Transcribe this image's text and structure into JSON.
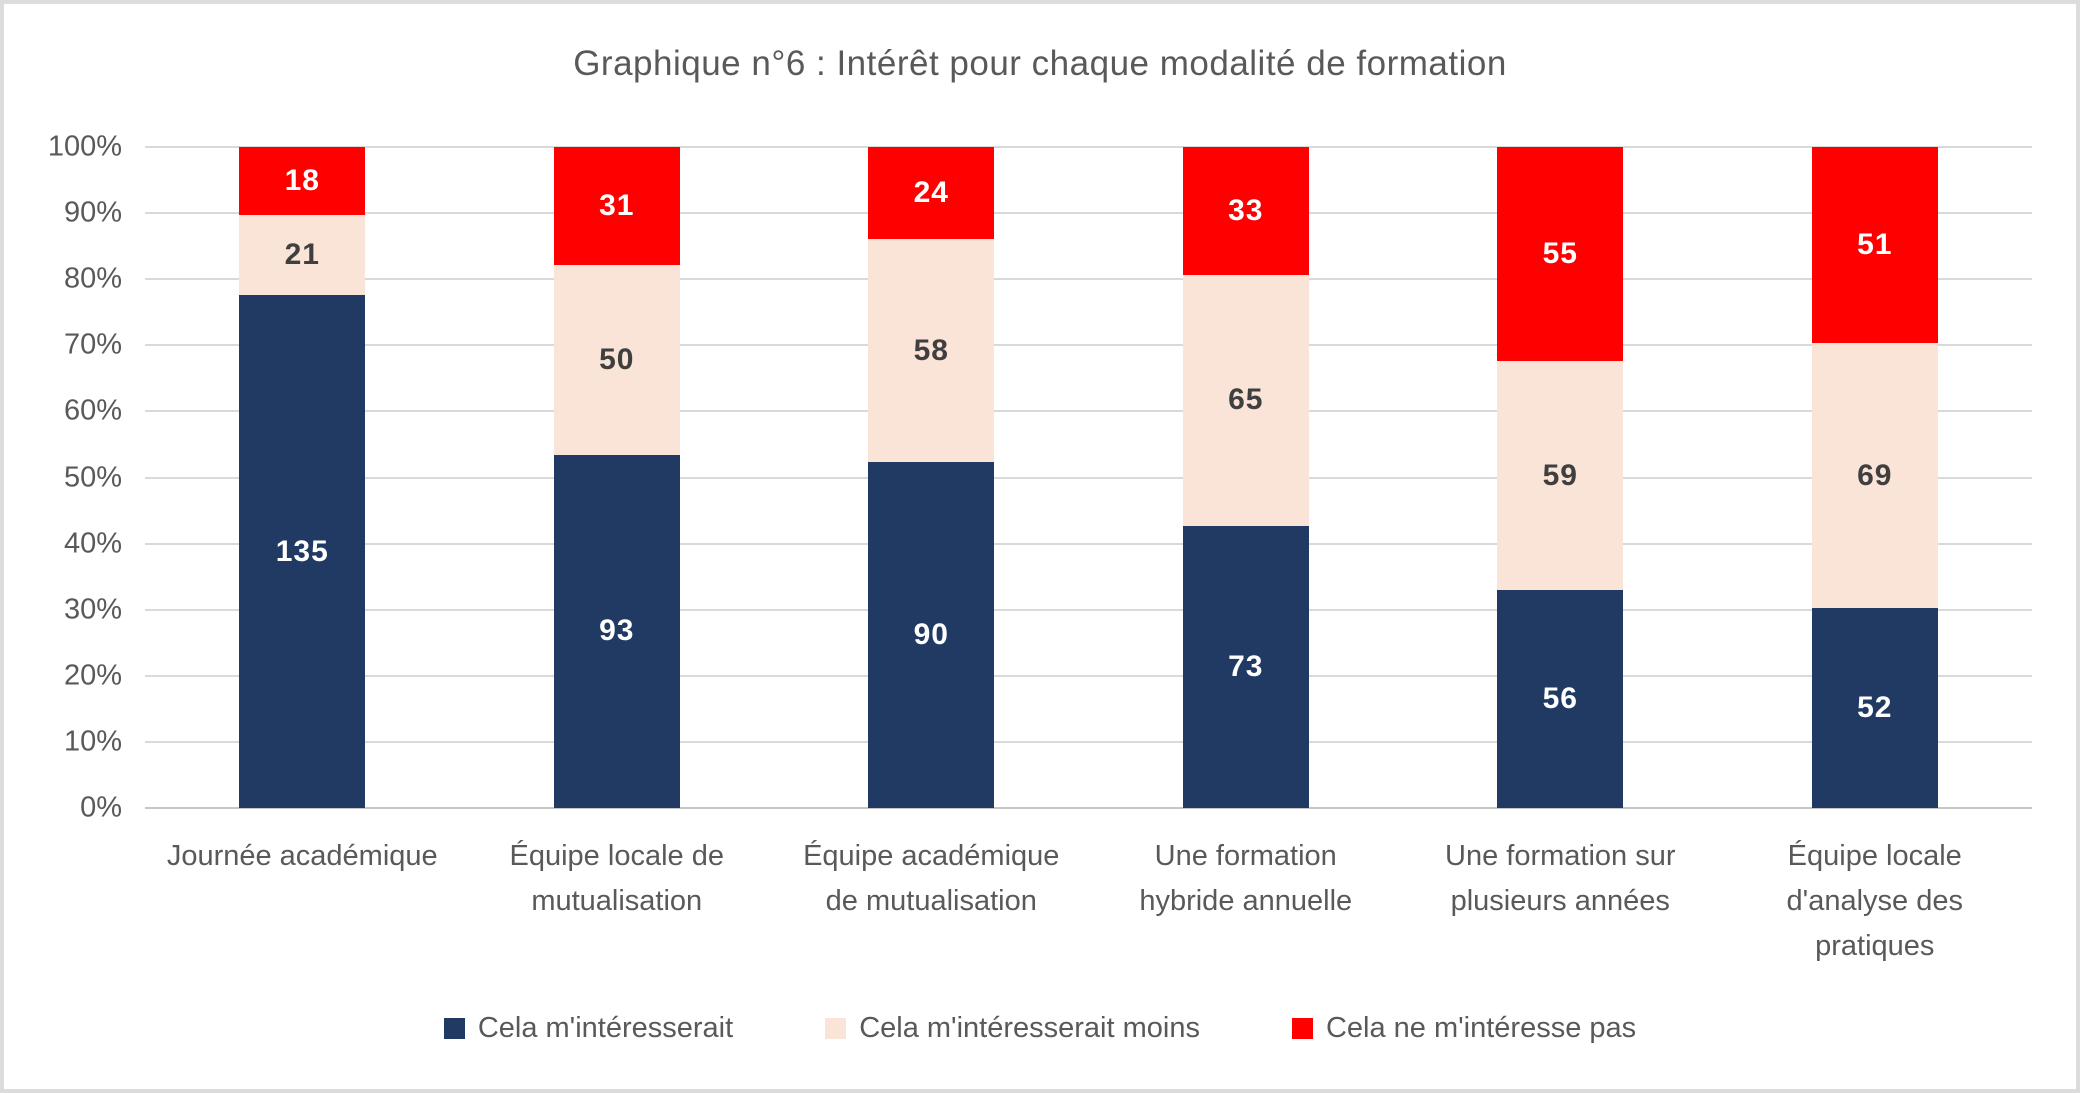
{
  "chart_data": {
    "type": "bar",
    "variant": "stacked-100-percent",
    "title": "Graphique n°6 : Intérêt pour chaque modalité de formation",
    "xlabel": "",
    "ylabel": "",
    "ylim": [
      0,
      100
    ],
    "grid": true,
    "legend_position": "bottom",
    "y_ticks": [
      "0%",
      "10%",
      "20%",
      "30%",
      "40%",
      "50%",
      "60%",
      "70%",
      "80%",
      "90%",
      "100%"
    ],
    "categories": [
      "Journée académique",
      "Équipe locale de mutualisation",
      "Équipe académique de mutualisation",
      "Une formation hybride annuelle",
      "Une formation sur plusieurs années",
      "Équipe locale d'analyse des pratiques"
    ],
    "series": [
      {
        "name": "Cela m'intéresserait",
        "color": "#203a64",
        "label_color": "#ffffff",
        "values": [
          135,
          93,
          90,
          73,
          56,
          52
        ]
      },
      {
        "name": "Cela m'intéresserait moins",
        "color": "#fae4d7",
        "label_color": "#3f3f3f",
        "values": [
          21,
          50,
          58,
          65,
          59,
          69
        ]
      },
      {
        "name": "Cela ne m'intéresse pas",
        "color": "#ff0000",
        "label_color": "#ffffff",
        "values": [
          18,
          31,
          24,
          33,
          55,
          51
        ]
      }
    ]
  },
  "colors": {
    "title_text": "#595959",
    "axis_text": "#595959",
    "gridline": "#d9d9d9",
    "axis_line": "#c6c6c6",
    "frame_border": "#dcdcdc",
    "background": "#ffffff"
  }
}
